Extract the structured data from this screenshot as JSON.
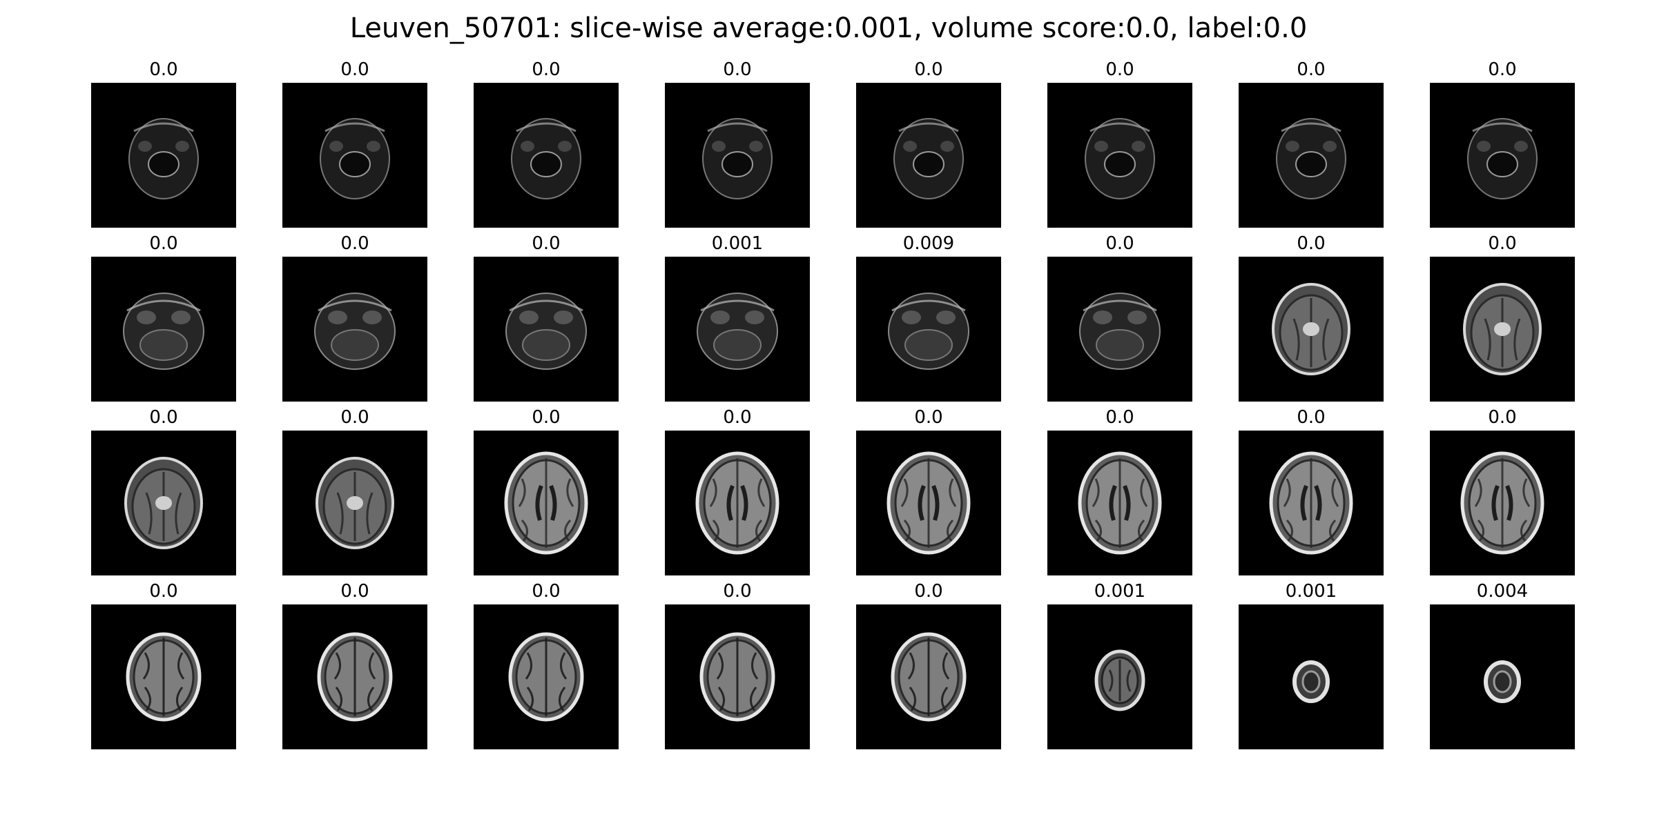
{
  "title": "Leuven_50701: slice-wise average:0.001, volume score:0.0, label:0.0",
  "slices": [
    {
      "score": "0.0",
      "kind": "skull"
    },
    {
      "score": "0.0",
      "kind": "skull"
    },
    {
      "score": "0.0",
      "kind": "skull"
    },
    {
      "score": "0.0",
      "kind": "skull"
    },
    {
      "score": "0.0",
      "kind": "skull"
    },
    {
      "score": "0.0",
      "kind": "skull"
    },
    {
      "score": "0.0",
      "kind": "skull"
    },
    {
      "score": "0.0",
      "kind": "skull"
    },
    {
      "score": "0.0",
      "kind": "base"
    },
    {
      "score": "0.0",
      "kind": "base"
    },
    {
      "score": "0.0",
      "kind": "base"
    },
    {
      "score": "0.001",
      "kind": "base"
    },
    {
      "score": "0.009",
      "kind": "base"
    },
    {
      "score": "0.0",
      "kind": "base"
    },
    {
      "score": "0.0",
      "kind": "mid"
    },
    {
      "score": "0.0",
      "kind": "mid"
    },
    {
      "score": "0.0",
      "kind": "mid"
    },
    {
      "score": "0.0",
      "kind": "mid"
    },
    {
      "score": "0.0",
      "kind": "brain"
    },
    {
      "score": "0.0",
      "kind": "brain"
    },
    {
      "score": "0.0",
      "kind": "brain"
    },
    {
      "score": "0.0",
      "kind": "brain"
    },
    {
      "score": "0.0",
      "kind": "brain"
    },
    {
      "score": "0.0",
      "kind": "brain"
    },
    {
      "score": "0.0",
      "kind": "top"
    },
    {
      "score": "0.0",
      "kind": "top"
    },
    {
      "score": "0.0",
      "kind": "top"
    },
    {
      "score": "0.0",
      "kind": "top"
    },
    {
      "score": "0.0",
      "kind": "top"
    },
    {
      "score": "0.001",
      "kind": "small"
    },
    {
      "score": "0.001",
      "kind": "tiny"
    },
    {
      "score": "0.004",
      "kind": "tiny"
    }
  ]
}
